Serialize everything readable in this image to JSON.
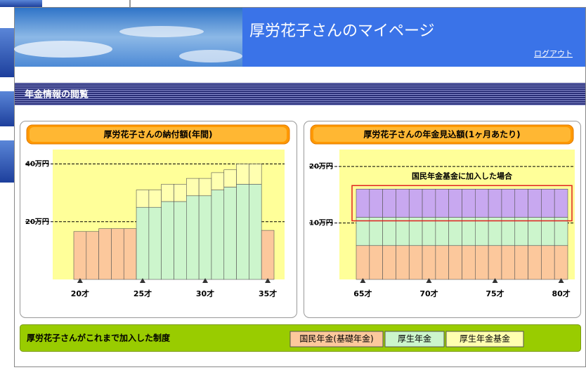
{
  "header": {
    "title": "厚労花子さんのマイページ",
    "logout": "ログアウト"
  },
  "section_title": "年金情報の閲覧",
  "chart_data": [
    {
      "type": "bar",
      "stacked": true,
      "title": "厚労花子さんの納付額(年間)",
      "categories": [
        "20才",
        null,
        null,
        null,
        null,
        "25才",
        null,
        null,
        null,
        null,
        "30才",
        null,
        null,
        null,
        null,
        "35才"
      ],
      "series": [
        {
          "name": "国民年金(基礎年金)",
          "color": "#fcc89c",
          "values": [
            16.6,
            16.6,
            17.6,
            17.6,
            17.6,
            null,
            null,
            null,
            null,
            null,
            null,
            null,
            null,
            null,
            null,
            17
          ]
        },
        {
          "name": "厚生年金",
          "color": "#ccf5cc",
          "values": [
            null,
            null,
            null,
            null,
            null,
            25,
            25,
            27,
            27,
            29,
            29,
            31,
            32,
            33,
            33,
            null
          ]
        },
        {
          "name": "厚生年金基金",
          "color": "#ffffb0",
          "values": [
            null,
            null,
            null,
            null,
            null,
            6,
            6,
            6,
            6,
            6,
            6,
            6,
            6,
            7,
            7,
            null
          ]
        }
      ],
      "ylim": [
        0,
        45
      ],
      "yticks": [
        {
          "value": 20,
          "label": "20万円"
        },
        {
          "value": 40,
          "label": "40万円"
        }
      ],
      "grid": true
    },
    {
      "type": "bar",
      "stacked": true,
      "title": "厚労花子さんの年金見込額(1ヶ月あたり)",
      "annotation": "国民年金基金に加入した場合",
      "categories": [
        "65才",
        null,
        null,
        null,
        null,
        "70才",
        null,
        null,
        null,
        null,
        "75才",
        null,
        null,
        null,
        null,
        "80才"
      ],
      "series": [
        {
          "color": "#fcc89c",
          "values": [
            6,
            6,
            6,
            6,
            6,
            6,
            6,
            6,
            6,
            6,
            6,
            6,
            6,
            6,
            6,
            6
          ]
        },
        {
          "color": "#ccf5cc",
          "values": [
            5,
            5,
            5,
            5,
            5,
            5,
            5,
            5,
            5,
            5,
            5,
            5,
            5,
            5,
            5,
            5
          ]
        },
        {
          "color": "#c8a8f0",
          "values": [
            5,
            5,
            5,
            5,
            5,
            5,
            5,
            5,
            5,
            5,
            5,
            5,
            5,
            5,
            5,
            5
          ]
        }
      ],
      "ylim": [
        0,
        23
      ],
      "yticks": [
        {
          "value": 10,
          "label": "10万円"
        },
        {
          "value": 20,
          "label": "20万円"
        }
      ],
      "grid": true
    }
  ],
  "system_bar": {
    "title": "厚労花子さんがこれまで加入した制度"
  }
}
